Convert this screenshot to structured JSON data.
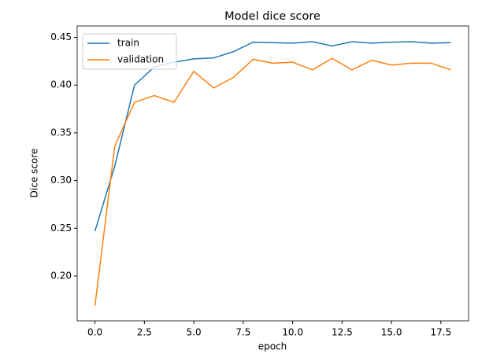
{
  "chart_data": {
    "type": "line",
    "title": "Model dice score",
    "x_label": "epoch",
    "y_label": "Dice score",
    "x": [
      0,
      1,
      2,
      3,
      4,
      5,
      6,
      7,
      8,
      9,
      10,
      11,
      12,
      13,
      14,
      15,
      16,
      17,
      18
    ],
    "series": [
      {
        "name": "train",
        "color": "#1f77b4",
        "values": [
          0.247,
          0.315,
          0.4,
          0.419,
          0.424,
          0.4275,
          0.4285,
          0.435,
          0.445,
          0.4445,
          0.444,
          0.4455,
          0.441,
          0.4455,
          0.444,
          0.445,
          0.4455,
          0.444,
          0.4445
        ]
      },
      {
        "name": "validation",
        "color": "#ff7f0e",
        "values": [
          0.169,
          0.336,
          0.382,
          0.389,
          0.382,
          0.4145,
          0.397,
          0.408,
          0.427,
          0.423,
          0.424,
          0.416,
          0.428,
          0.416,
          0.426,
          0.421,
          0.423,
          0.423,
          0.416
        ]
      }
    ],
    "xlim": [
      -0.9,
      18.9
    ],
    "xticks": [
      {
        "value": 0,
        "label": "0.0"
      },
      {
        "value": 2.5,
        "label": "2.5"
      },
      {
        "value": 5,
        "label": "5.0"
      },
      {
        "value": 7.5,
        "label": "7.5"
      },
      {
        "value": 10,
        "label": "10.0"
      },
      {
        "value": 12.5,
        "label": "12.5"
      },
      {
        "value": 15,
        "label": "15.0"
      },
      {
        "value": 17.5,
        "label": "17.5"
      }
    ],
    "ylim": [
      0.153,
      0.462
    ],
    "yticks": [
      {
        "value": 0.2,
        "label": "0.20"
      },
      {
        "value": 0.25,
        "label": "0.25"
      },
      {
        "value": 0.3,
        "label": "0.30"
      },
      {
        "value": 0.35,
        "label": "0.35"
      },
      {
        "value": 0.4,
        "label": "0.40"
      },
      {
        "value": 0.45,
        "label": "0.45"
      }
    ],
    "legend": "upper left",
    "grid": false
  }
}
